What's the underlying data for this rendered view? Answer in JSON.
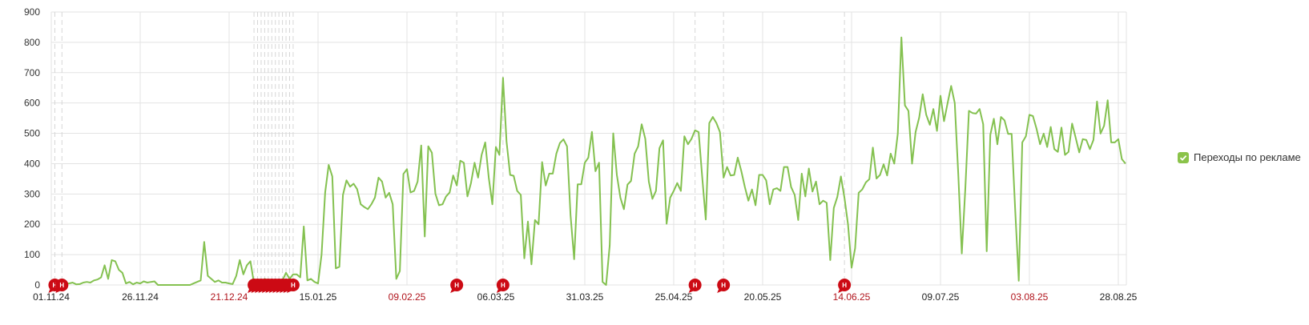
{
  "colors": {
    "line": "#84c150",
    "grid": "#e3e3e3",
    "marker": "#cc0a14",
    "holiday_label": "#b0141c",
    "legend_box": "#8bc34a"
  },
  "legend": {
    "label": "Переходы по рекламе",
    "checked": true,
    "icon": "checkbox-checked-icon"
  },
  "chart_data": {
    "type": "line",
    "title": "",
    "xlabel": "",
    "ylabel": "",
    "ylim": [
      0,
      900
    ],
    "y_ticks": [
      "0",
      "100",
      "200",
      "300",
      "400",
      "500",
      "600",
      "700",
      "800",
      "900"
    ],
    "grid": true,
    "legend_position": "right",
    "x_start": "01.11.24",
    "x_interval": "day",
    "x_ticks": [
      {
        "label": "01.11.24",
        "holiday": false
      },
      {
        "label": "26.11.24",
        "holiday": false
      },
      {
        "label": "21.12.24",
        "holiday": true
      },
      {
        "label": "15.01.25",
        "holiday": false
      },
      {
        "label": "09.02.25",
        "holiday": true
      },
      {
        "label": "06.03.25",
        "holiday": false
      },
      {
        "label": "31.03.25",
        "holiday": false
      },
      {
        "label": "25.04.25",
        "holiday": false
      },
      {
        "label": "20.05.25",
        "holiday": false
      },
      {
        "label": "14.06.25",
        "holiday": true
      },
      {
        "label": "09.07.25",
        "holiday": false
      },
      {
        "label": "03.08.25",
        "holiday": true
      },
      {
        "label": "28.08.25",
        "holiday": false
      }
    ],
    "series": [
      {
        "name": "Переходы по рекламе",
        "values": [
          0,
          3,
          5,
          5,
          5,
          5,
          8,
          2,
          3,
          8,
          10,
          8,
          15,
          18,
          25,
          65,
          20,
          82,
          78,
          50,
          40,
          5,
          10,
          2,
          8,
          5,
          12,
          8,
          10,
          12,
          0,
          0,
          0,
          0,
          0,
          0,
          0,
          0,
          0,
          0,
          5,
          10,
          15,
          142,
          30,
          20,
          10,
          15,
          8,
          8,
          5,
          3,
          30,
          82,
          35,
          65,
          78,
          5,
          10,
          8,
          20,
          15,
          12,
          10,
          5,
          15,
          40,
          20,
          35,
          35,
          25,
          193,
          15,
          20,
          10,
          5,
          100,
          305,
          396,
          358,
          55,
          60,
          297,
          345,
          324,
          334,
          316,
          266,
          257,
          250,
          266,
          288,
          354,
          341,
          288,
          304,
          266,
          20,
          46,
          366,
          382,
          305,
          310,
          341,
          460,
          160,
          457,
          436,
          301,
          263,
          266,
          292,
          305,
          361,
          328,
          410,
          403,
          292,
          336,
          403,
          354,
          429,
          470,
          354,
          266,
          455,
          429,
          683,
          473,
          363,
          360,
          310,
          297,
          88,
          209,
          68,
          214,
          200,
          405,
          328,
          367,
          367,
          433,
          468,
          480,
          457,
          230,
          85,
          332,
          332,
          403,
          420,
          505,
          375,
          403,
          10,
          0,
          131,
          500,
          363,
          288,
          250,
          331,
          343,
          433,
          457,
          530,
          482,
          341,
          284,
          310,
          451,
          477,
          202,
          288,
          310,
          336,
          310,
          490,
          464,
          482,
          510,
          504,
          358,
          216,
          534,
          554,
          534,
          504,
          354,
          389,
          361,
          363,
          420,
          375,
          323,
          278,
          315,
          263,
          363,
          363,
          345,
          266,
          315,
          319,
          310,
          389,
          389,
          323,
          297,
          214,
          367,
          292,
          384,
          308,
          341,
          266,
          278,
          271,
          82,
          254,
          290,
          358,
          288,
          199,
          57,
          121,
          304,
          315,
          338,
          349,
          453,
          351,
          363,
          398,
          361,
          433,
          400,
          499,
          816,
          592,
          574,
          400,
          504,
          552,
          629,
          561,
          528,
          580,
          508,
          624,
          540,
          600,
          656,
          600,
          365,
          104,
          323,
          574,
          567,
          565,
          580,
          530,
          111,
          495,
          548,
          464,
          554,
          543,
          498,
          498,
          250,
          14,
          470,
          490,
          561,
          557,
          515,
          464,
          499,
          455,
          521,
          448,
          439,
          519,
          429,
          439,
          532,
          486,
          437,
          481,
          478,
          448,
          478,
          605,
          499,
          525,
          609,
          470,
          470,
          481,
          415,
          400
        ]
      }
    ],
    "annotations": {
      "label": "Н",
      "dates": [
        "02.11.24",
        "04.11.24",
        "28.12.24",
        "29.12.24",
        "30.12.24",
        "31.12.24",
        "01.01.25",
        "02.01.25",
        "03.01.25",
        "04.01.25",
        "05.01.25",
        "06.01.25",
        "07.01.25",
        "08.01.25",
        "23.02.25",
        "08.03.25",
        "01.05.25",
        "09.05.25",
        "12.06.25"
      ],
      "day_offsets": [
        1,
        3,
        57,
        58,
        59,
        60,
        61,
        62,
        63,
        64,
        65,
        66,
        67,
        68,
        114,
        127,
        181,
        189,
        223
      ]
    }
  }
}
